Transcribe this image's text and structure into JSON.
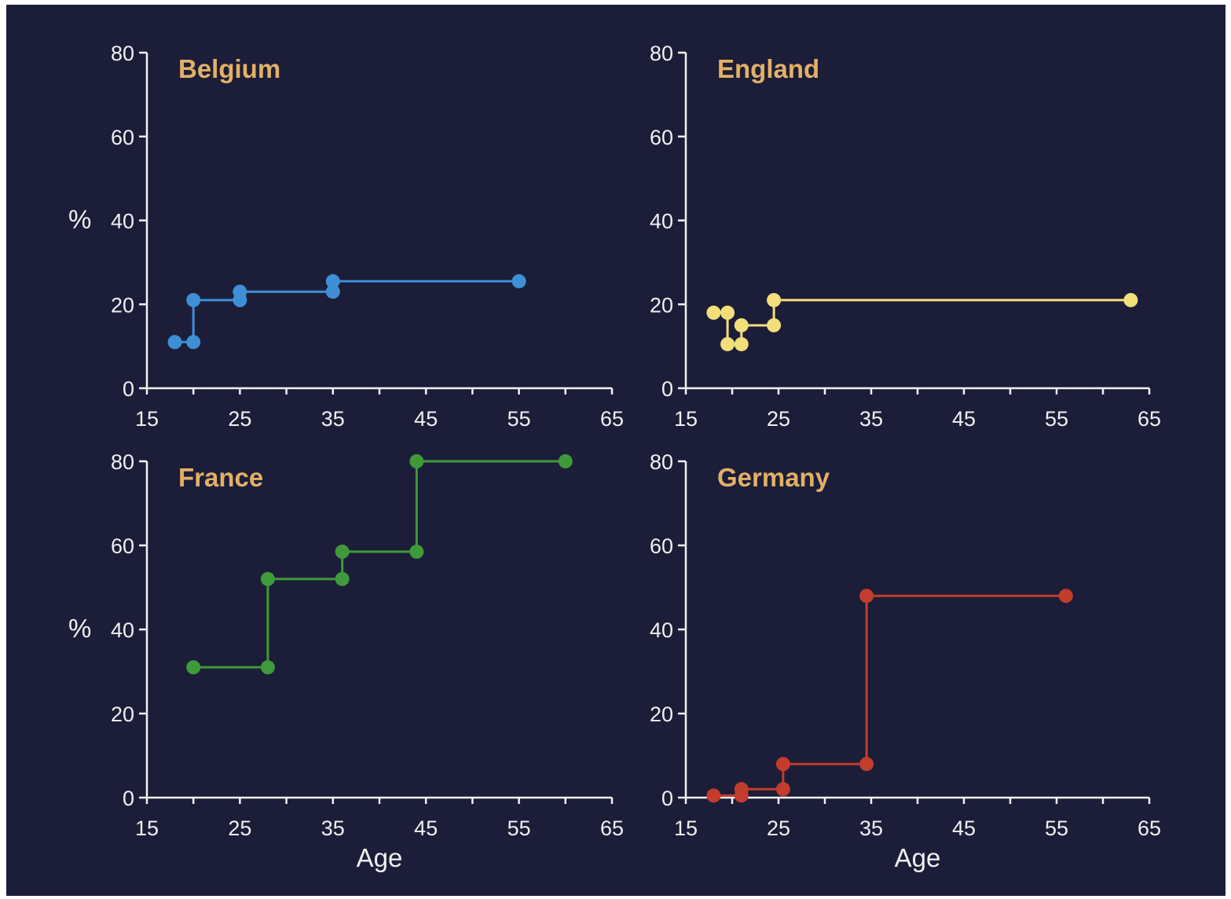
{
  "chart_data": [
    {
      "type": "line",
      "title": "Belgium",
      "xlabel": "",
      "ylabel": "%",
      "xlim": [
        15,
        65
      ],
      "ylim": [
        0,
        80
      ],
      "x_ticks": [
        "15",
        "25",
        "35",
        "45",
        "55",
        "65"
      ],
      "y_ticks": [
        "0",
        "20",
        "40",
        "60",
        "80"
      ],
      "colors": {
        "series": "#3e8fd6",
        "title": "#e2b066"
      },
      "series": [
        {
          "points": [
            [
              18,
              11
            ],
            [
              20,
              11
            ],
            [
              20,
              21
            ],
            [
              25,
              21
            ],
            [
              25,
              23
            ],
            [
              35,
              23
            ],
            [
              35,
              25.5
            ],
            [
              55,
              25.5
            ]
          ]
        }
      ]
    },
    {
      "type": "line",
      "title": "England",
      "xlabel": "",
      "ylabel": "",
      "xlim": [
        15,
        65
      ],
      "ylim": [
        0,
        80
      ],
      "x_ticks": [
        "15",
        "25",
        "35",
        "45",
        "55",
        "65"
      ],
      "y_ticks": [
        "0",
        "20",
        "40",
        "60",
        "80"
      ],
      "colors": {
        "series": "#f3df7a",
        "title": "#e2b066"
      },
      "series": [
        {
          "points": [
            [
              18,
              18
            ],
            [
              19.5,
              18
            ],
            [
              19.5,
              10.5
            ],
            [
              21,
              10.5
            ],
            [
              21,
              15
            ],
            [
              24.5,
              15
            ],
            [
              24.5,
              21
            ],
            [
              63,
              21
            ]
          ]
        }
      ]
    },
    {
      "type": "line",
      "title": "France",
      "xlabel": "Age",
      "ylabel": "%",
      "xlim": [
        15,
        65
      ],
      "ylim": [
        0,
        80
      ],
      "x_ticks": [
        "15",
        "25",
        "35",
        "45",
        "55",
        "65"
      ],
      "y_ticks": [
        "0",
        "20",
        "40",
        "60",
        "80"
      ],
      "colors": {
        "series": "#3f9a3a",
        "title": "#e2b066"
      },
      "series": [
        {
          "points": [
            [
              20,
              31
            ],
            [
              28,
              31
            ],
            [
              28,
              52
            ],
            [
              36,
              52
            ],
            [
              36,
              58.5
            ],
            [
              44,
              58.5
            ],
            [
              44,
              80
            ],
            [
              60,
              80
            ]
          ]
        }
      ]
    },
    {
      "type": "line",
      "title": "Germany",
      "xlabel": "Age",
      "ylabel": "",
      "xlim": [
        15,
        65
      ],
      "ylim": [
        0,
        80
      ],
      "x_ticks": [
        "15",
        "25",
        "35",
        "45",
        "55",
        "65"
      ],
      "y_ticks": [
        "0",
        "20",
        "40",
        "60",
        "80"
      ],
      "colors": {
        "series": "#c43c2c",
        "title": "#e2b066"
      },
      "series": [
        {
          "points": [
            [
              18,
              0.5
            ],
            [
              21,
              0.5
            ],
            [
              21,
              2
            ],
            [
              25.5,
              2
            ],
            [
              25.5,
              8
            ],
            [
              34.5,
              8
            ],
            [
              34.5,
              48
            ],
            [
              56,
              48
            ]
          ]
        }
      ]
    }
  ]
}
